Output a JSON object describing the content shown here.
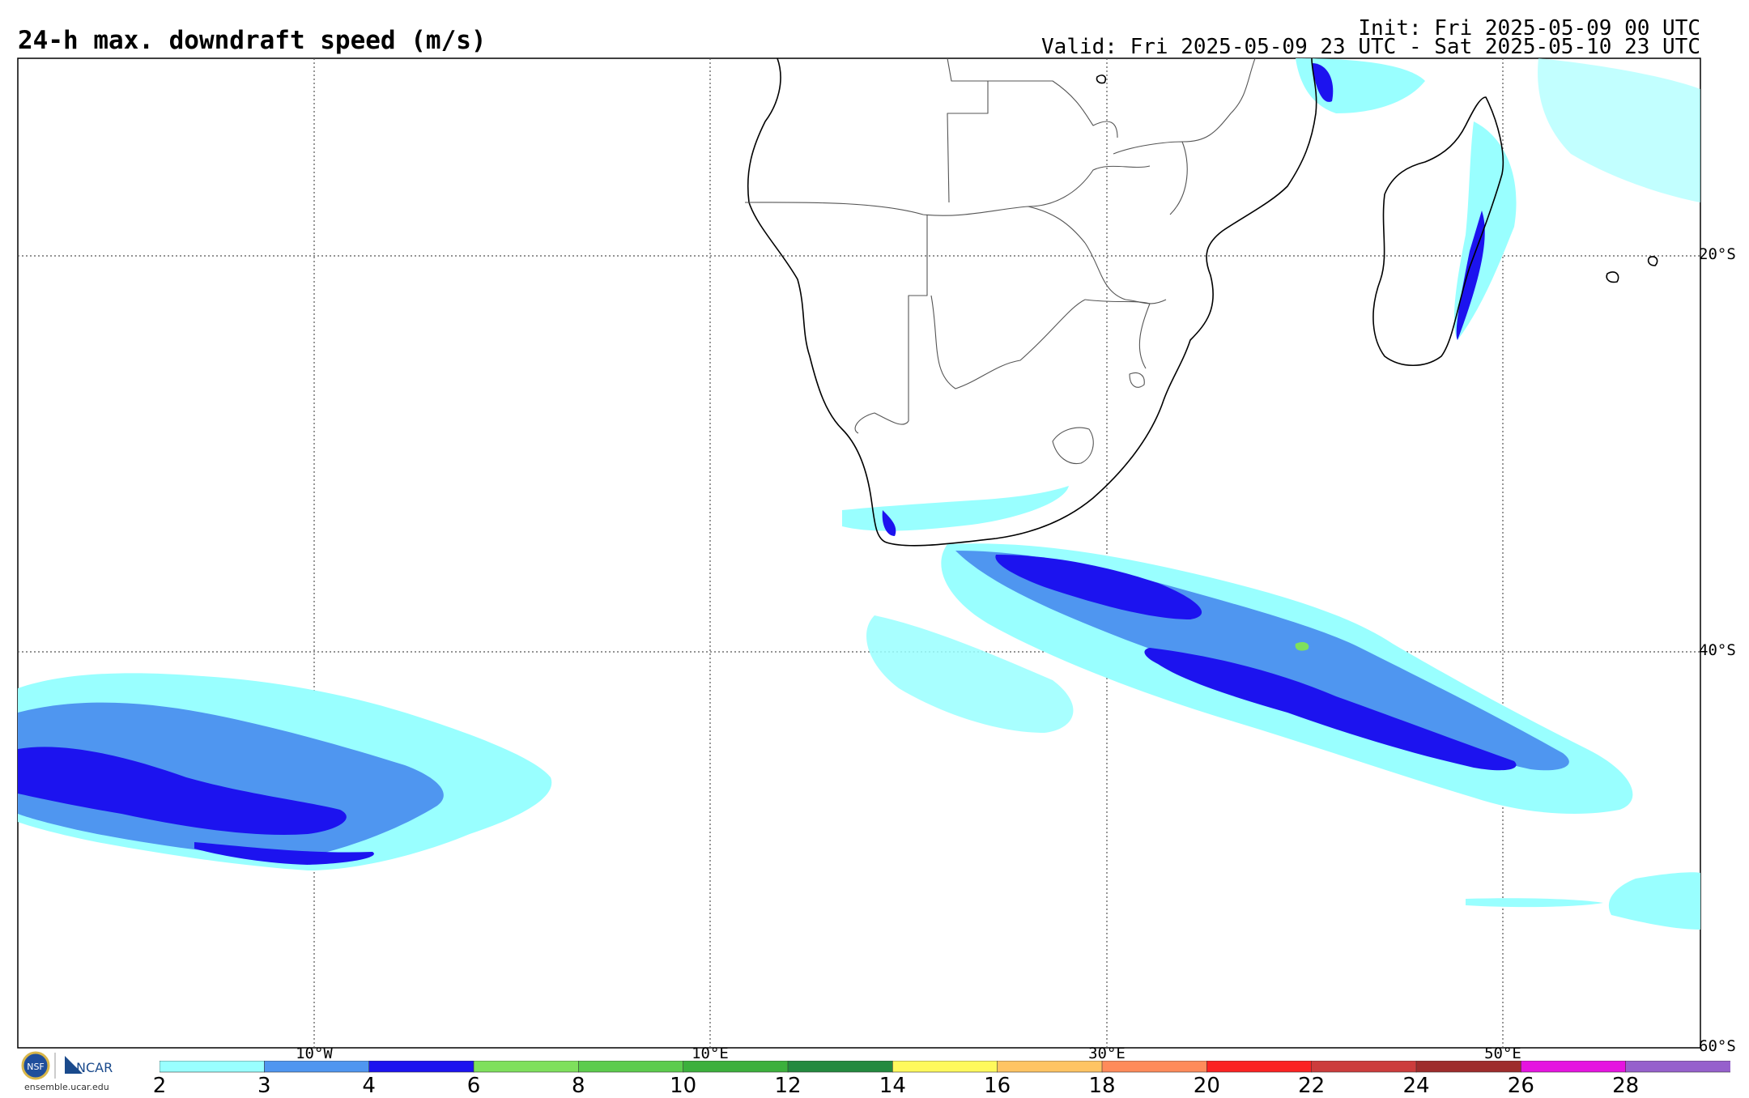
{
  "header": {
    "title": "24-h max. downdraft speed (m/s)",
    "init": "Init: Fri 2025-05-09 00 UTC",
    "valid": "Valid: Fri 2025-05-09 23 UTC - Sat 2025-05-10 23 UTC"
  },
  "map": {
    "lat_labels": [
      "20°S",
      "40°S",
      "60°S"
    ],
    "lon_labels": [
      "10°W",
      "10°E",
      "30°E",
      "50°E"
    ],
    "grid_lines": true,
    "grid_style": "dotted"
  },
  "colorbar": {
    "ticks": [
      "2",
      "3",
      "4",
      "6",
      "8",
      "10",
      "12",
      "14",
      "16",
      "18",
      "20",
      "22",
      "24",
      "26",
      "28"
    ],
    "colors": [
      "#99ffff",
      "#4f96f0",
      "#1c13ef",
      "#7fe05c",
      "#5ccc4d",
      "#3cb03c",
      "#238a3f",
      "#fff95c",
      "#ffc463",
      "#ff8b5a",
      "#fb2222",
      "#cc3c3c",
      "#9e2c2c",
      "#e514e0",
      "#9660cc"
    ]
  },
  "footer": {
    "logo_text": "ensemble.ucar.edu",
    "ncar_label": "NCAR",
    "nsf_label": "NSF"
  }
}
